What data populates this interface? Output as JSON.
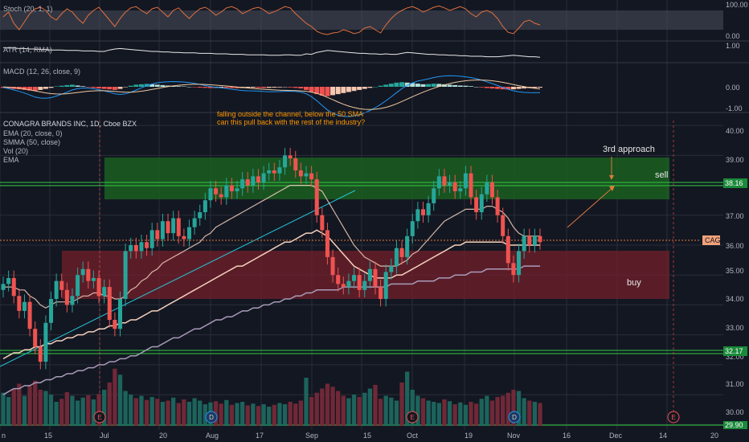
{
  "colors": {
    "background": "#131722",
    "grid": "#2a2e39",
    "up": "#26a69a",
    "down": "#ef5350",
    "volume_up": "#1e6b62",
    "volume_down": "#7b2a3a",
    "stoch_line": "#e0703e",
    "atr_line": "#e8e8e8",
    "macd_line": "#2196f3",
    "signal_line": "#f0c9a0",
    "ema20": "#f5d1bd",
    "smma50": "#a89bb8",
    "trendline": "#26c6da",
    "sell_zone": "#1b5e20",
    "buy_zone": "#6d1f2a",
    "annotation": "#ff9800",
    "arrow": "#e07a3c",
    "price_tag_bg": "#f2a27a",
    "level_line": "#2ecc40"
  },
  "panes": {
    "stoch": {
      "label": "Stoch (20, 1, 1)",
      "ticks": [
        "100.00",
        "0.00"
      ]
    },
    "atr": {
      "label": "ATR (14, RMA)",
      "ticks": [
        "1.00"
      ]
    },
    "macd": {
      "label": "MACD (12, 26, close, 9)",
      "ticks": [
        "0.00",
        "-1.00"
      ]
    },
    "price": {
      "title": "CONAGRA BRANDS INC, 1D, Cboe BZX",
      "legend": [
        "EMA (20, close, 0)",
        "SMMA (50, close)",
        "Vol (20)",
        "EMA"
      ],
      "ticks": [
        "40.00",
        "39.00",
        "37.00",
        "36.00",
        "35.00",
        "34.00",
        "33.00",
        "32.00",
        "31.00",
        "30.00"
      ]
    }
  },
  "price_labels": {
    "upper_level": "38.16",
    "lower_level": "32.17",
    "last_symbol": "CAG",
    "bottom_partial": "29.90"
  },
  "annotations": {
    "note_line1": "falling outside the channel, below the 50 SMA",
    "note_line2": "can this pull back with the rest of the industry?",
    "third_approach": "3rd approach",
    "sell": "sell",
    "buy": "buy"
  },
  "event_markers": [
    "E",
    "D",
    "E",
    "D",
    "E"
  ],
  "x_axis_labels": [
    "n",
    "15",
    "Jul",
    "20",
    "Aug",
    "17",
    "Sep",
    "15",
    "Oct",
    "19",
    "Nov",
    "16",
    "Dec",
    "14",
    "20"
  ],
  "chart_data": {
    "type": "candlestick",
    "symbol": "CAG",
    "title": "CONAGRA BRANDS INC, 1D, Cboe BZX",
    "ylim": [
      29.9,
      40.3
    ],
    "zones": {
      "sell": [
        37.6,
        39.0
      ],
      "buy": [
        34.0,
        35.7
      ]
    },
    "levels": [
      38.16,
      32.17
    ],
    "close": [
      34.7,
      34.9,
      34.3,
      33.8,
      34.1,
      33.2,
      32.6,
      32.1,
      33.4,
      34.2,
      34.8,
      34.5,
      34.0,
      34.3,
      35.0,
      35.2,
      34.8,
      34.9,
      34.3,
      34.6,
      33.5,
      33.2,
      34.2,
      35.8,
      36.0,
      35.8,
      36.1,
      35.9,
      36.5,
      36.2,
      36.8,
      36.4,
      36.9,
      36.3,
      36.2,
      36.6,
      36.9,
      37.1,
      37.5,
      37.9,
      37.7,
      37.6,
      38.0,
      37.8,
      37.9,
      38.2,
      38.0,
      38.3,
      38.1,
      38.4,
      38.5,
      38.4,
      38.6,
      39.0,
      38.9,
      38.5,
      38.3,
      38.4,
      38.2,
      37.0,
      36.5,
      35.6,
      35.0,
      34.7,
      34.6,
      34.8,
      35.0,
      34.5,
      34.8,
      35.2,
      34.6,
      34.2,
      35.1,
      35.3,
      35.9,
      35.6,
      36.3,
      36.8,
      37.2,
      37.0,
      37.4,
      37.9,
      38.3,
      38.0,
      38.1,
      37.8,
      37.9,
      38.4,
      37.6,
      37.1,
      37.7,
      38.1,
      37.6,
      37.0,
      36.3,
      35.4,
      35.0,
      35.8,
      36.3,
      36.0,
      36.3,
      36.1
    ],
    "ema20": [
      34.6,
      34.6,
      34.6,
      34.5,
      34.5,
      34.3,
      34.2,
      34.0,
      33.9,
      34.0,
      34.1,
      34.1,
      34.1,
      34.1,
      34.2,
      34.3,
      34.3,
      34.4,
      34.4,
      34.3,
      34.3,
      34.2,
      34.2,
      34.3,
      34.5,
      34.6,
      34.8,
      34.9,
      35.1,
      35.2,
      35.4,
      35.5,
      35.6,
      35.7,
      35.8,
      35.9,
      36.0,
      36.1,
      36.3,
      36.4,
      36.6,
      36.7,
      36.8,
      36.9,
      37.0,
      37.1,
      37.2,
      37.3,
      37.4,
      37.5,
      37.6,
      37.7,
      37.8,
      37.9,
      38.0,
      38.0,
      38.0,
      38.0,
      38.0,
      37.9,
      37.8,
      37.5,
      37.2,
      36.9,
      36.6,
      36.3,
      36.0,
      35.8,
      35.6,
      35.5,
      35.4,
      35.3,
      35.3,
      35.3,
      35.3,
      35.4,
      35.5,
      35.7,
      35.8,
      36.0,
      36.2,
      36.4,
      36.6,
      36.8,
      36.9,
      37.0,
      37.1,
      37.2,
      37.2,
      37.2,
      37.2,
      37.3,
      37.3,
      37.2,
      37.1,
      36.9,
      36.6,
      36.4,
      36.3,
      36.3,
      36.3,
      36.3
    ],
    "smma50": [
      32.2,
      32.3,
      32.4,
      32.4,
      32.5,
      32.5,
      32.6,
      32.6,
      32.7,
      32.7,
      32.8,
      32.8,
      32.9,
      32.9,
      33.0,
      33.0,
      33.1,
      33.1,
      33.2,
      33.2,
      33.3,
      33.3,
      33.4,
      33.4,
      33.5,
      33.5,
      33.6,
      33.7,
      33.8,
      33.8,
      33.9,
      34.0,
      34.1,
      34.2,
      34.3,
      34.4,
      34.5,
      34.6,
      34.7,
      34.8,
      34.9,
      35.0,
      35.1,
      35.2,
      35.3,
      35.3,
      35.4,
      35.5,
      35.6,
      35.7,
      35.8,
      35.9,
      36.0,
      36.1,
      36.1,
      36.2,
      36.3,
      36.4,
      36.4,
      36.5,
      36.4,
      36.3,
      36.1,
      35.9,
      35.7,
      35.5,
      35.3,
      35.2,
      35.1,
      35.0,
      34.9,
      34.9,
      34.9,
      34.9,
      35.0,
      35.0,
      35.1,
      35.2,
      35.3,
      35.4,
      35.5,
      35.6,
      35.7,
      35.8,
      35.9,
      36.0,
      36.0,
      36.1,
      36.1,
      36.1,
      36.1,
      36.1,
      36.1,
      36.1,
      36.1,
      36.0,
      36.0,
      36.0,
      36.0,
      36.0,
      36.0,
      36.0
    ],
    "ema_long": [
      31.0,
      31.1,
      31.2,
      31.2,
      31.3,
      31.3,
      31.4,
      31.4,
      31.5,
      31.5,
      31.6,
      31.6,
      31.7,
      31.7,
      31.8,
      31.8,
      31.9,
      31.9,
      32.0,
      32.0,
      32.1,
      32.1,
      32.2,
      32.2,
      32.3,
      32.3,
      32.4,
      32.5,
      32.6,
      32.6,
      32.7,
      32.8,
      32.9,
      32.9,
      33.0,
      33.1,
      33.2,
      33.2,
      33.3,
      33.4,
      33.5,
      33.5,
      33.6,
      33.6,
      33.7,
      33.8,
      33.8,
      33.9,
      33.9,
      34.0,
      34.0,
      34.1,
      34.1,
      34.2,
      34.2,
      34.3,
      34.3,
      34.4,
      34.4,
      34.5,
      34.5,
      34.5,
      34.5,
      34.5,
      34.6,
      34.6,
      34.6,
      34.6,
      34.6,
      34.6,
      34.6,
      34.6,
      34.6,
      34.7,
      34.7,
      34.7,
      34.7,
      34.7,
      34.8,
      34.8,
      34.8,
      34.8,
      34.9,
      34.9,
      34.9,
      35.0,
      35.0,
      35.0,
      35.1,
      35.1,
      35.1,
      35.2,
      35.2,
      35.2,
      35.2,
      35.2,
      35.2,
      35.2,
      35.3,
      35.3,
      35.3,
      35.3
    ],
    "volume_relative": [
      0.55,
      0.48,
      0.62,
      0.7,
      0.5,
      0.66,
      0.75,
      0.6,
      0.58,
      0.52,
      0.4,
      0.45,
      0.56,
      0.5,
      0.42,
      0.47,
      0.51,
      0.44,
      0.53,
      0.6,
      0.72,
      0.95,
      0.85,
      0.58,
      0.52,
      0.46,
      0.5,
      0.43,
      0.48,
      0.45,
      0.4,
      0.42,
      0.47,
      0.38,
      0.44,
      0.4,
      0.46,
      0.42,
      0.36,
      0.39,
      0.41,
      0.37,
      0.43,
      0.35,
      0.38,
      0.4,
      0.34,
      0.37,
      0.33,
      0.36,
      0.32,
      0.35,
      0.38,
      0.36,
      0.4,
      0.37,
      0.42,
      0.8,
      0.48,
      0.55,
      0.62,
      0.7,
      0.65,
      0.58,
      0.5,
      0.46,
      0.52,
      0.48,
      0.55,
      0.62,
      0.68,
      0.45,
      0.5,
      0.47,
      0.42,
      0.72,
      0.9,
      0.6,
      0.5,
      0.46,
      0.42,
      0.4,
      0.38,
      0.44,
      0.41,
      0.36,
      0.39,
      0.35,
      0.4,
      0.37,
      0.45,
      0.5,
      0.42,
      0.48,
      0.5,
      0.55,
      0.6,
      0.58,
      0.46,
      0.42,
      0.4,
      0.38
    ],
    "stoch": [
      60,
      75,
      40,
      20,
      45,
      70,
      85,
      90,
      80,
      60,
      50,
      70,
      85,
      75,
      55,
      40,
      65,
      80,
      90,
      70,
      50,
      30,
      55,
      75,
      88,
      92,
      80,
      70,
      85,
      90,
      75,
      60,
      80,
      88,
      70,
      55,
      72,
      85,
      90,
      80,
      65,
      75,
      88,
      92,
      85,
      70,
      78,
      86,
      90,
      82,
      70,
      76,
      84,
      92,
      88,
      70,
      55,
      40,
      30,
      15,
      8,
      5,
      10,
      12,
      20,
      15,
      8,
      12,
      25,
      30,
      20,
      10,
      35,
      55,
      70,
      80,
      88,
      92,
      85,
      75,
      82,
      90,
      94,
      88,
      80,
      86,
      92,
      85,
      70,
      60,
      75,
      80,
      72,
      55,
      30,
      12,
      8,
      25,
      45,
      50,
      40,
      35
    ],
    "atr": [
      0.98,
      0.97,
      0.97,
      0.96,
      0.96,
      0.95,
      0.95,
      0.94,
      0.94,
      0.93,
      0.93,
      0.93,
      0.92,
      0.92,
      0.92,
      0.91,
      0.91,
      0.91,
      0.9,
      0.9,
      0.93,
      0.95,
      0.96,
      0.95,
      0.94,
      0.93,
      0.92,
      0.91,
      0.9,
      0.9,
      0.89,
      0.89,
      0.88,
      0.88,
      0.87,
      0.87,
      0.87,
      0.86,
      0.86,
      0.86,
      0.85,
      0.85,
      0.85,
      0.84,
      0.84,
      0.84,
      0.83,
      0.83,
      0.83,
      0.83,
      0.82,
      0.82,
      0.82,
      0.83,
      0.83,
      0.82,
      0.82,
      0.85,
      0.84,
      0.88,
      0.9,
      0.92,
      0.91,
      0.9,
      0.89,
      0.88,
      0.87,
      0.86,
      0.86,
      0.85,
      0.85,
      0.84,
      0.85,
      0.84,
      0.84,
      0.86,
      0.88,
      0.87,
      0.86,
      0.85,
      0.84,
      0.84,
      0.83,
      0.83,
      0.82,
      0.82,
      0.81,
      0.81,
      0.8,
      0.8,
      0.8,
      0.79,
      0.79,
      0.79,
      0.8,
      0.81,
      0.82,
      0.81,
      0.8,
      0.79,
      0.79,
      0.78
    ],
    "macd_hist": [
      -0.05,
      -0.08,
      -0.1,
      -0.12,
      -0.15,
      -0.18,
      -0.2,
      -0.15,
      -0.1,
      -0.05,
      0.02,
      0.05,
      0.08,
      0.1,
      0.06,
      0.03,
      -0.02,
      -0.05,
      -0.08,
      -0.1,
      -0.12,
      -0.15,
      -0.1,
      -0.02,
      0.05,
      0.1,
      0.12,
      0.14,
      0.12,
      0.1,
      0.08,
      0.06,
      0.05,
      0.03,
      0.02,
      0.0,
      -0.02,
      -0.04,
      -0.05,
      -0.06,
      -0.05,
      -0.04,
      -0.05,
      -0.06,
      -0.07,
      -0.06,
      -0.05,
      -0.04,
      -0.05,
      -0.06,
      -0.05,
      -0.04,
      -0.03,
      -0.02,
      -0.03,
      -0.05,
      -0.08,
      -0.15,
      -0.25,
      -0.35,
      -0.42,
      -0.45,
      -0.4,
      -0.35,
      -0.3,
      -0.25,
      -0.2,
      -0.15,
      -0.1,
      -0.05,
      0.0,
      0.05,
      0.1,
      0.15,
      0.2,
      0.22,
      0.2,
      0.18,
      0.15,
      0.12,
      0.13,
      0.15,
      0.14,
      0.12,
      0.1,
      0.08,
      0.06,
      0.05,
      0.03,
      0.0,
      -0.03,
      -0.06,
      -0.08,
      -0.1,
      -0.12,
      -0.13,
      -0.12,
      -0.1,
      -0.08,
      -0.06,
      -0.05,
      -0.04
    ]
  }
}
